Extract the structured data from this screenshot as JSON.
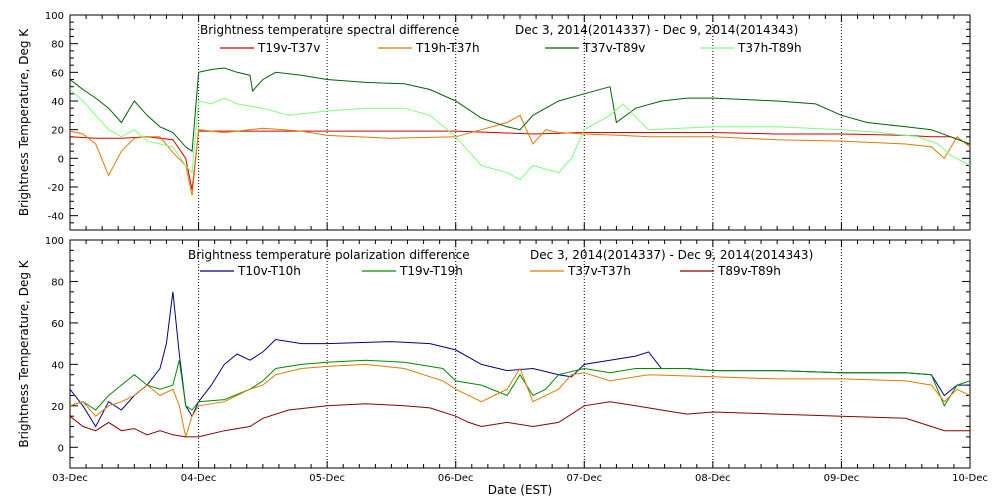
{
  "chart_data": [
    {
      "type": "line",
      "title": "Brightness temperature spectral difference",
      "date_range": "Dec  3, 2014(2014337) - Dec  9, 2014(2014343)",
      "ylabel": "Brightness Temperature, Deg K",
      "xlabel": "",
      "ylim": [
        -50,
        100
      ],
      "yticks": [
        -40,
        -20,
        0,
        20,
        40,
        60,
        80,
        100
      ],
      "xlim": [
        "2014-12-03",
        "2014-12-10"
      ],
      "x_tick_labels": [
        "",
        "",
        "",
        "",
        "",
        "",
        "",
        ""
      ],
      "grid": "vertical dotted lines at each day",
      "legend_position": "top",
      "series": [
        {
          "name": "T19v-T37v",
          "color": "#d10000",
          "x": [
            0,
            0.2,
            0.4,
            0.6,
            0.8,
            0.9,
            0.95,
            1.0,
            1.2,
            1.5,
            2.0,
            2.5,
            3.0,
            3.3,
            3.6,
            4.0,
            4.5,
            5.0,
            5.5,
            6.0,
            6.5,
            6.7,
            6.85,
            7.0
          ],
          "y": [
            15,
            14,
            14,
            15,
            13,
            0,
            -22,
            19,
            19,
            19,
            19,
            19,
            19,
            18,
            17,
            18,
            18,
            18,
            17,
            17,
            16,
            15,
            15,
            10
          ]
        },
        {
          "name": "T19h-T37h",
          "color": "#e07b00",
          "x": [
            0,
            0.1,
            0.2,
            0.3,
            0.4,
            0.5,
            0.6,
            0.7,
            0.8,
            0.9,
            0.95,
            1.0,
            1.2,
            1.5,
            1.8,
            2.0,
            2.5,
            3.0,
            3.2,
            3.4,
            3.5,
            3.6,
            3.7,
            3.8,
            4.0,
            4.3,
            4.5,
            5.0,
            5.5,
            6.0,
            6.5,
            6.7,
            6.8,
            6.9,
            7.0
          ],
          "y": [
            19,
            17,
            10,
            -12,
            5,
            14,
            15,
            15,
            4,
            -5,
            -26,
            20,
            18,
            21,
            19,
            16,
            14,
            15,
            20,
            25,
            30,
            10,
            20,
            18,
            17,
            16,
            15,
            15,
            13,
            12,
            10,
            8,
            0,
            15,
            8
          ]
        },
        {
          "name": "T37v-T89v",
          "color": "#006400",
          "x": [
            0,
            0.1,
            0.2,
            0.3,
            0.4,
            0.5,
            0.6,
            0.7,
            0.8,
            0.9,
            0.95,
            1.0,
            1.1,
            1.2,
            1.3,
            1.4,
            1.42,
            1.5,
            1.6,
            1.8,
            2.0,
            2.3,
            2.6,
            2.8,
            3.0,
            3.2,
            3.4,
            3.5,
            3.6,
            3.8,
            4.0,
            4.2,
            4.25,
            4.4,
            4.6,
            4.8,
            5.0,
            5.5,
            5.8,
            6.0,
            6.2,
            6.5,
            6.7,
            6.85,
            7.0
          ],
          "y": [
            55,
            48,
            42,
            35,
            25,
            40,
            30,
            22,
            18,
            8,
            5,
            60,
            62,
            63,
            60,
            58,
            47,
            55,
            60,
            58,
            55,
            53,
            52,
            48,
            40,
            28,
            22,
            20,
            30,
            40,
            45,
            50,
            25,
            35,
            40,
            42,
            42,
            40,
            38,
            30,
            25,
            22,
            20,
            15,
            10
          ]
        },
        {
          "name": "T37h-T89h",
          "color": "#7cff7c",
          "x": [
            0,
            0.1,
            0.2,
            0.3,
            0.4,
            0.5,
            0.6,
            0.7,
            0.8,
            0.9,
            0.95,
            1.0,
            1.1,
            1.2,
            1.3,
            1.5,
            1.7,
            2.0,
            2.3,
            2.6,
            2.8,
            3.0,
            3.1,
            3.2,
            3.4,
            3.5,
            3.6,
            3.8,
            3.9,
            4.0,
            4.2,
            4.3,
            4.5,
            5.0,
            5.5,
            6.0,
            6.3,
            6.6,
            6.75,
            6.85,
            7.0
          ],
          "y": [
            48,
            40,
            30,
            20,
            15,
            20,
            12,
            10,
            8,
            -5,
            -10,
            40,
            38,
            42,
            38,
            35,
            30,
            33,
            35,
            35,
            30,
            15,
            5,
            -5,
            -10,
            -15,
            -5,
            -10,
            0,
            20,
            30,
            38,
            20,
            22,
            22,
            20,
            18,
            15,
            10,
            2,
            -5
          ]
        }
      ]
    },
    {
      "type": "line",
      "title": "Brightness temperature polarization difference",
      "date_range": "Dec  3, 2014(2014337) - Dec  9, 2014(2014343)",
      "ylabel": "Brightness Temperature, Deg K",
      "xlabel": "Date (EST)",
      "ylim": [
        -10,
        100
      ],
      "yticks": [
        0,
        20,
        40,
        60,
        80,
        100
      ],
      "xlim": [
        "2014-12-03",
        "2014-12-10"
      ],
      "x_tick_labels": [
        "03-Dec",
        "04-Dec",
        "05-Dec",
        "06-Dec",
        "07-Dec",
        "08-Dec",
        "09-Dec",
        "10-Dec"
      ],
      "grid": "vertical dotted lines at each day",
      "legend_position": "top",
      "series": [
        {
          "name": "T10v-T10h",
          "color": "#00008b",
          "x": [
            0,
            0.1,
            0.2,
            0.3,
            0.4,
            0.5,
            0.6,
            0.7,
            0.75,
            0.8,
            0.85,
            0.9,
            0.95,
            1.0,
            1.1,
            1.2,
            1.3,
            1.4,
            1.5,
            1.6,
            1.8,
            2.0,
            2.5,
            2.8,
            3.0,
            3.2,
            3.4,
            3.6,
            3.8,
            3.9,
            4.0,
            4.2,
            4.4,
            4.5,
            4.6,
            4.8,
            5.0,
            5.5,
            6.0,
            6.5,
            6.7,
            6.8,
            6.9,
            7.0
          ],
          "y": [
            28,
            20,
            10,
            22,
            18,
            25,
            30,
            38,
            50,
            75,
            45,
            20,
            15,
            22,
            30,
            40,
            45,
            42,
            46,
            52,
            50,
            50,
            51,
            50,
            47,
            40,
            37,
            38,
            35,
            34,
            40,
            42,
            44,
            46,
            38,
            38,
            37,
            37,
            36,
            36,
            35,
            25,
            30,
            30
          ]
        },
        {
          "name": "T19v-T19h",
          "color": "#008c00",
          "x": [
            0,
            0.1,
            0.2,
            0.3,
            0.4,
            0.5,
            0.6,
            0.7,
            0.8,
            0.85,
            0.9,
            0.95,
            1.0,
            1.2,
            1.4,
            1.5,
            1.6,
            1.8,
            2.0,
            2.3,
            2.6,
            2.9,
            3.0,
            3.2,
            3.4,
            3.5,
            3.6,
            3.7,
            3.8,
            4.0,
            4.2,
            4.4,
            4.6,
            4.8,
            5.0,
            5.5,
            6.0,
            6.5,
            6.7,
            6.8,
            6.9,
            7.0
          ],
          "y": [
            20,
            22,
            18,
            25,
            30,
            35,
            30,
            28,
            30,
            42,
            20,
            18,
            22,
            23,
            28,
            32,
            38,
            40,
            41,
            42,
            41,
            38,
            32,
            30,
            25,
            35,
            25,
            28,
            35,
            38,
            36,
            38,
            38,
            38,
            37,
            37,
            36,
            36,
            35,
            20,
            30,
            32
          ]
        },
        {
          "name": "T37v-T37h",
          "color": "#e07b00",
          "x": [
            0,
            0.1,
            0.2,
            0.3,
            0.4,
            0.5,
            0.6,
            0.7,
            0.8,
            0.85,
            0.9,
            0.95,
            1.0,
            1.2,
            1.4,
            1.5,
            1.6,
            1.8,
            2.0,
            2.3,
            2.6,
            2.9,
            3.0,
            3.2,
            3.4,
            3.5,
            3.6,
            3.8,
            3.9,
            4.0,
            4.2,
            4.5,
            5.0,
            5.5,
            6.0,
            6.5,
            6.7,
            6.8,
            6.9,
            7.0
          ],
          "y": [
            20,
            22,
            15,
            20,
            22,
            25,
            30,
            25,
            28,
            20,
            5,
            15,
            20,
            22,
            28,
            30,
            35,
            38,
            39,
            40,
            38,
            32,
            28,
            22,
            28,
            38,
            22,
            28,
            35,
            36,
            32,
            35,
            34,
            33,
            33,
            32,
            30,
            22,
            28,
            25
          ]
        },
        {
          "name": "T89v-T89h",
          "color": "#8b0000",
          "x": [
            0,
            0.1,
            0.2,
            0.3,
            0.4,
            0.5,
            0.6,
            0.7,
            0.8,
            0.9,
            1.0,
            1.2,
            1.4,
            1.5,
            1.7,
            2.0,
            2.3,
            2.6,
            2.8,
            3.0,
            3.1,
            3.2,
            3.4,
            3.6,
            3.8,
            4.0,
            4.2,
            4.4,
            4.6,
            4.8,
            5.0,
            5.5,
            6.0,
            6.5,
            6.7,
            6.8,
            7.0
          ],
          "y": [
            15,
            10,
            8,
            12,
            8,
            9,
            6,
            8,
            6,
            5,
            5,
            8,
            10,
            14,
            18,
            20,
            21,
            20,
            19,
            15,
            12,
            10,
            12,
            10,
            12,
            20,
            22,
            20,
            18,
            16,
            17,
            16,
            15,
            14,
            10,
            8,
            8
          ]
        }
      ]
    }
  ]
}
